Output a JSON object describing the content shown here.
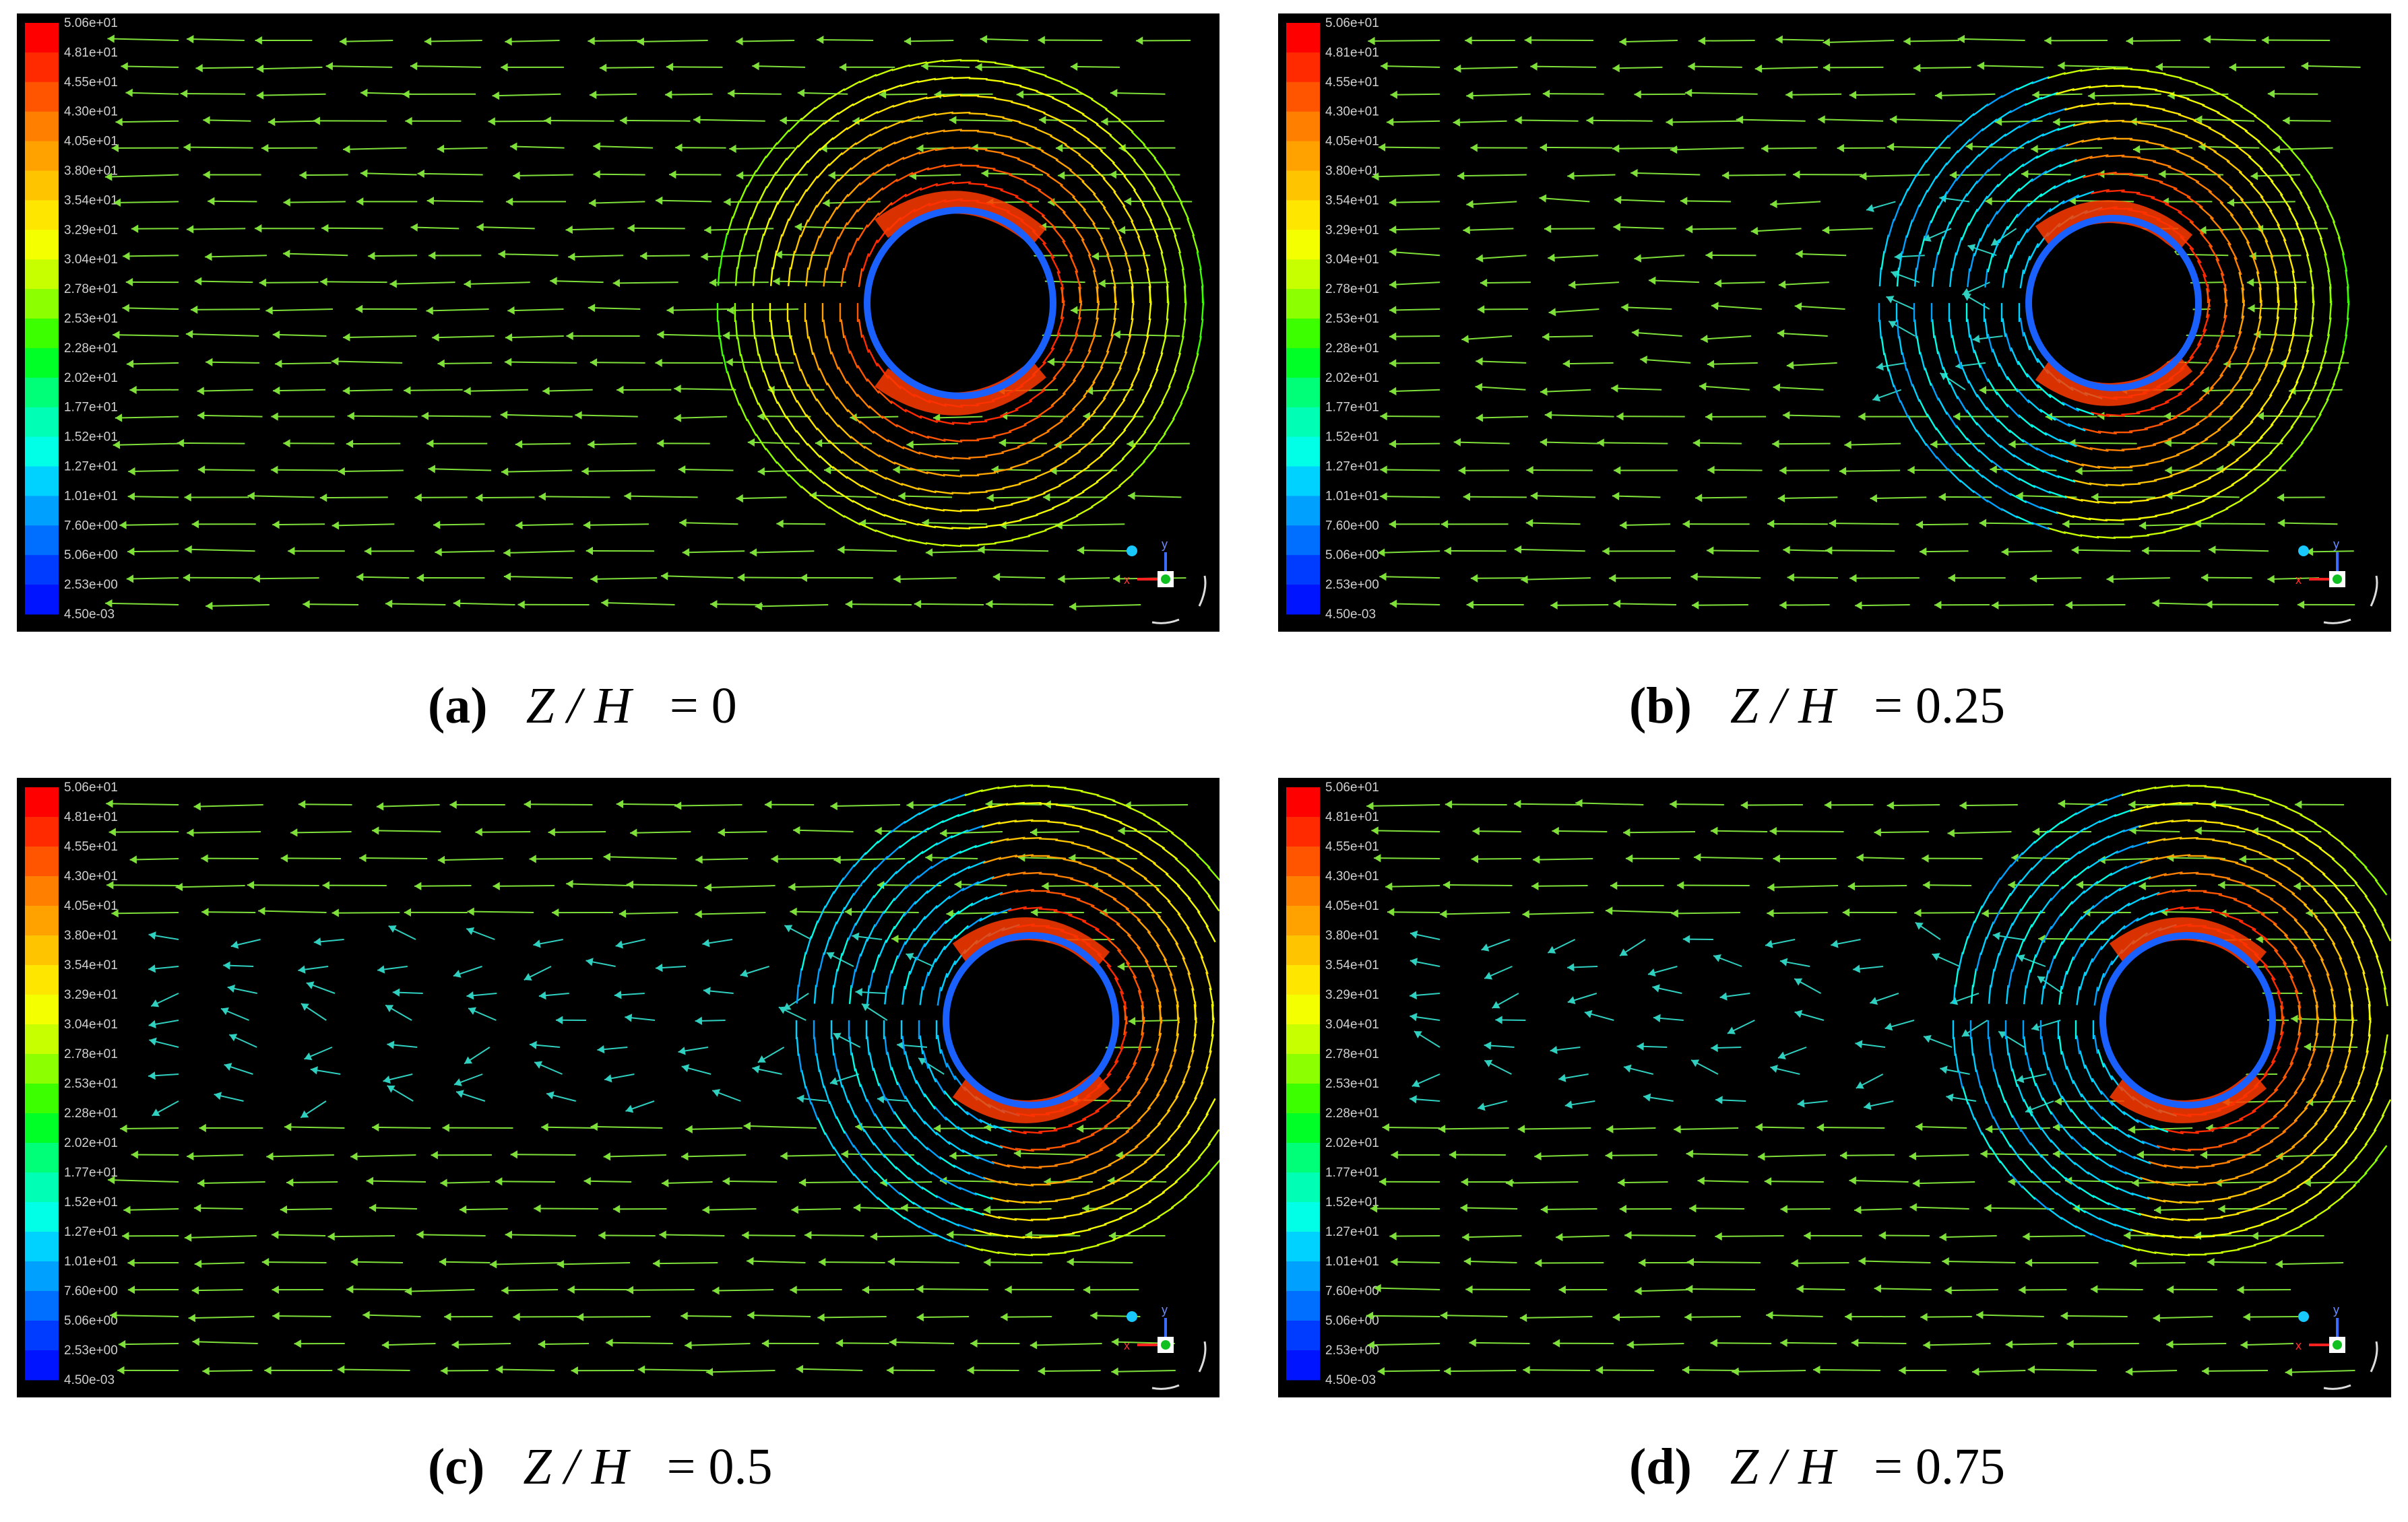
{
  "colorbar": {
    "ticks": [
      "5.06e+01",
      "4.81e+01",
      "4.55e+01",
      "4.30e+01",
      "4.05e+01",
      "3.80e+01",
      "3.54e+01",
      "3.29e+01",
      "3.04e+01",
      "2.78e+01",
      "2.53e+01",
      "2.28e+01",
      "2.02e+01",
      "1.77e+01",
      "1.52e+01",
      "1.27e+01",
      "1.01e+01",
      "7.60e+00",
      "5.06e+00",
      "2.53e+00",
      "4.50e-03"
    ],
    "colors": [
      "#ff0000",
      "#ff2a00",
      "#ff5500",
      "#ff7f00",
      "#ffa200",
      "#ffc400",
      "#ffe600",
      "#f4ff00",
      "#c8ff00",
      "#8cff00",
      "#3cff00",
      "#00ff26",
      "#00ff78",
      "#00ffb4",
      "#00ffe6",
      "#00d2ff",
      "#00a0ff",
      "#006eff",
      "#003cff",
      "#0014ff"
    ]
  },
  "panels": [
    {
      "label": "(a)",
      "variable": "Z / H",
      "equals": "= 0",
      "wake": "none"
    },
    {
      "label": "(b)",
      "variable": "Z / H",
      "equals": "= 0.25",
      "wake": "short"
    },
    {
      "label": "(c)",
      "variable": "Z / H",
      "equals": "= 0.5",
      "wake": "long"
    },
    {
      "label": "(d)",
      "variable": "Z / H",
      "equals": "= 0.75",
      "wake": "long"
    }
  ],
  "triad": {
    "x_label": "x",
    "y_label": "y"
  },
  "colors": {
    "background": "#000000",
    "vector": "#7fe03a",
    "cylinder": "#000000"
  }
}
